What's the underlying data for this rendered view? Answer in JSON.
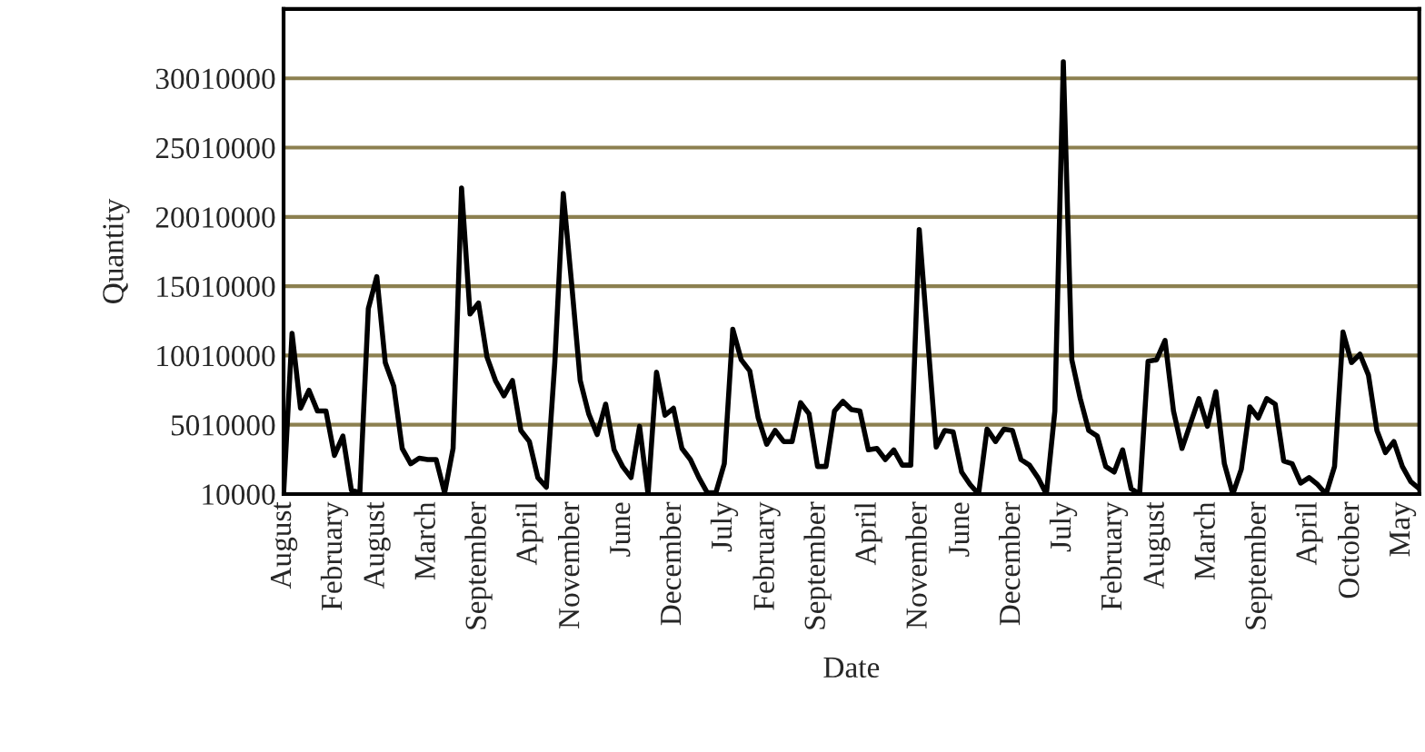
{
  "chart_data": {
    "type": "line",
    "xlabel": "Date",
    "ylabel": "Quantity",
    "categories": [
      "August",
      null,
      null,
      null,
      null,
      null,
      "February",
      null,
      null,
      null,
      null,
      "August",
      null,
      null,
      null,
      null,
      null,
      "March",
      null,
      null,
      null,
      null,
      null,
      "September",
      null,
      null,
      null,
      null,
      null,
      "April",
      null,
      null,
      null,
      null,
      "November",
      null,
      null,
      null,
      null,
      null,
      "June",
      null,
      null,
      null,
      null,
      null,
      "December",
      null,
      null,
      null,
      null,
      null,
      "July",
      null,
      null,
      null,
      null,
      "February",
      null,
      null,
      null,
      null,
      null,
      "September",
      null,
      null,
      null,
      null,
      null,
      "April",
      null,
      null,
      null,
      null,
      null,
      "November",
      null,
      null,
      null,
      null,
      "June",
      null,
      null,
      null,
      null,
      null,
      "December",
      null,
      null,
      null,
      null,
      null,
      "July",
      null,
      null,
      null,
      null,
      null,
      "February",
      null,
      null,
      null,
      null,
      "August",
      null,
      null,
      null,
      null,
      null,
      "March",
      null,
      null,
      null,
      null,
      null,
      "September",
      null,
      null,
      null,
      null,
      null,
      "April",
      null,
      null,
      null,
      null,
      "October",
      null,
      null,
      null,
      null,
      null,
      "May",
      null,
      null
    ],
    "series": [
      {
        "color": "#000000",
        "values": [
          10000,
          11600000,
          6200000,
          7500000,
          6000000,
          6000000,
          2800000,
          4200000,
          300000,
          100000,
          13400000,
          15700000,
          9500000,
          7800000,
          3300000,
          2200000,
          2600000,
          2500000,
          2500000,
          100000,
          3300000,
          22100000,
          13000000,
          13800000,
          9900000,
          8200000,
          7100000,
          8200000,
          4600000,
          3800000,
          1200000,
          500000,
          9500000,
          21700000,
          15100000,
          8200000,
          5800000,
          4300000,
          6500000,
          3200000,
          2000000,
          1200000,
          4900000,
          10000,
          8800000,
          5700000,
          6200000,
          3300000,
          2500000,
          1200000,
          100000,
          100000,
          2200000,
          11900000,
          9700000,
          8900000,
          5500000,
          3600000,
          4600000,
          3800000,
          3800000,
          6600000,
          5800000,
          2000000,
          2000000,
          6000000,
          6700000,
          6100000,
          6000000,
          3200000,
          3300000,
          2500000,
          3200000,
          2100000,
          2100000,
          19100000,
          11200000,
          3400000,
          4600000,
          4500000,
          1600000,
          700000,
          10000,
          4700000,
          3800000,
          4700000,
          4600000,
          2500000,
          2100000,
          1200000,
          10000,
          6000000,
          31200000,
          9700000,
          6900000,
          4600000,
          4200000,
          2000000,
          1600000,
          3200000,
          400000,
          10000,
          9600000,
          9700000,
          11100000,
          6000000,
          3300000,
          5100000,
          6900000,
          4900000,
          7400000,
          2200000,
          10000,
          1800000,
          6300000,
          5500000,
          6900000,
          6500000,
          2400000,
          2200000,
          800000,
          1200000,
          700000,
          10000,
          2000000,
          11700000,
          9500000,
          10100000,
          8600000,
          4600000,
          3000000,
          3800000,
          2000000,
          900000,
          400000
        ]
      }
    ],
    "ylim": [
      10000,
      35010000
    ],
    "yticks": [
      10000,
      5010000,
      10010000,
      15010000,
      20010000,
      25010000,
      30010000
    ],
    "grid": "y",
    "legend": false
  }
}
